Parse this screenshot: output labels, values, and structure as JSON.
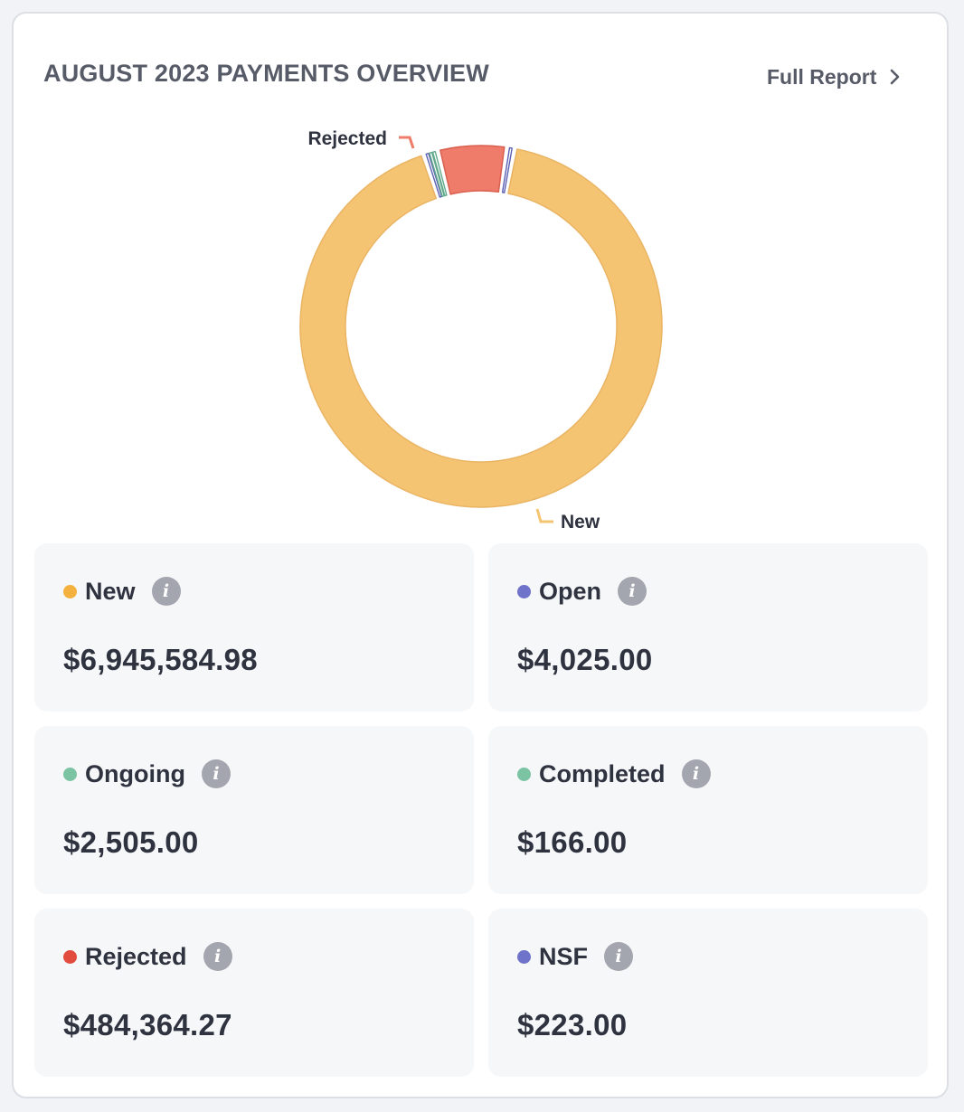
{
  "header": {
    "title": "AUGUST 2023 PAYMENTS OVERVIEW",
    "full_report_label": "Full Report",
    "full_report_icon": "chevron-right-icon"
  },
  "chart_data": {
    "type": "pie",
    "variant": "donut",
    "slices": [
      {
        "label": "New",
        "value": 6945584.98,
        "color": "#f5c473",
        "callout": "New"
      },
      {
        "label": "Open",
        "value": 4025.0,
        "color": "#6f73c9",
        "callout": ""
      },
      {
        "label": "Ongoing",
        "value": 2505.0,
        "color": "#7cc3a4",
        "callout": ""
      },
      {
        "label": "Completed",
        "value": 166.0,
        "color": "#7cc3a4",
        "callout": ""
      },
      {
        "label": "Rejected",
        "value": 484364.27,
        "color": "#ef7b6a",
        "callout": "Rejected"
      },
      {
        "label": "NSF",
        "value": 223.0,
        "color": "#6f73c9",
        "callout": ""
      }
    ]
  },
  "tiles": [
    {
      "label": "New",
      "amount": "$6,945,584.98",
      "dot_color": "#f5b13d"
    },
    {
      "label": "Open",
      "amount": "$4,025.00",
      "dot_color": "#6f73c9"
    },
    {
      "label": "Ongoing",
      "amount": "$2,505.00",
      "dot_color": "#7cc3a4"
    },
    {
      "label": "Completed",
      "amount": "$166.00",
      "dot_color": "#7cc3a4"
    },
    {
      "label": "Rejected",
      "amount": "$484,364.27",
      "dot_color": "#e24c3f"
    },
    {
      "label": "NSF",
      "amount": "$223.00",
      "dot_color": "#6f73c9"
    }
  ]
}
